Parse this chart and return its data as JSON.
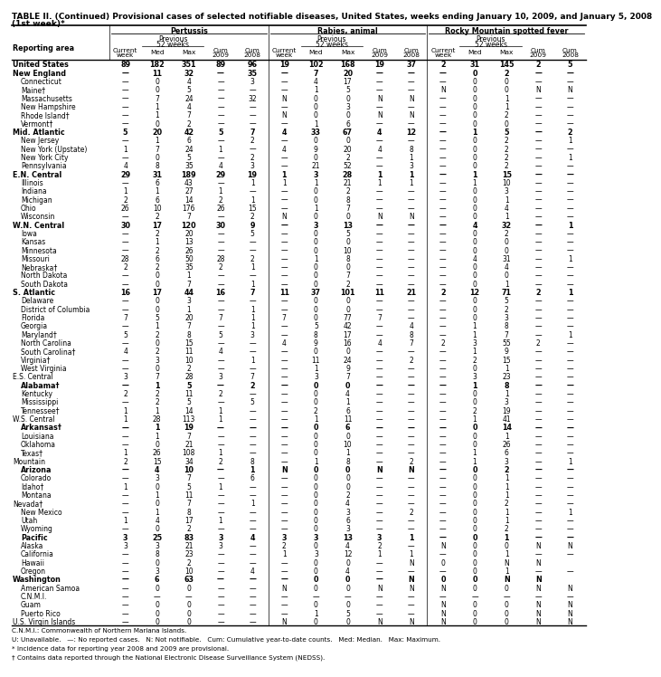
{
  "title1": "TABLE II. (Continued) Provisional cases of selected notifiable diseases, United States, weeks ending January 10, 2009, and January 5, 2008",
  "title2": "(1st week)*",
  "col_groups": [
    "Pertussis",
    "Rabies, animal",
    "Rocky Mountain spotted fever"
  ],
  "rows": [
    [
      "United States",
      "89",
      "182",
      "351",
      "89",
      "96",
      "19",
      "102",
      "168",
      "19",
      "37",
      "2",
      "31",
      "145",
      "2",
      "5"
    ],
    [
      "New England",
      "—",
      "11",
      "32",
      "—",
      "35",
      "—",
      "7",
      "20",
      "—",
      "—",
      "—",
      "0",
      "2",
      "—",
      "—"
    ],
    [
      "Connecticut",
      "—",
      "0",
      "4",
      "—",
      "3",
      "—",
      "4",
      "17",
      "—",
      "—",
      "—",
      "0",
      "0",
      "—",
      "—"
    ],
    [
      "Maine†",
      "—",
      "0",
      "5",
      "—",
      "—",
      "—",
      "1",
      "5",
      "—",
      "—",
      "N",
      "0",
      "0",
      "N",
      "N"
    ],
    [
      "Massachusetts",
      "—",
      "7",
      "24",
      "—",
      "32",
      "N",
      "0",
      "0",
      "N",
      "N",
      "—",
      "0",
      "1",
      "—",
      "—"
    ],
    [
      "New Hampshire",
      "—",
      "1",
      "4",
      "—",
      "—",
      "—",
      "0",
      "3",
      "—",
      "—",
      "—",
      "0",
      "1",
      "—",
      "—"
    ],
    [
      "Rhode Island†",
      "—",
      "1",
      "7",
      "—",
      "—",
      "N",
      "0",
      "0",
      "N",
      "N",
      "—",
      "0",
      "2",
      "—",
      "—"
    ],
    [
      "Vermont†",
      "—",
      "0",
      "2",
      "—",
      "—",
      "—",
      "1",
      "6",
      "—",
      "—",
      "—",
      "0",
      "0",
      "—",
      "—"
    ],
    [
      "Mid. Atlantic",
      "5",
      "20",
      "42",
      "5",
      "7",
      "4",
      "33",
      "67",
      "4",
      "12",
      "—",
      "1",
      "5",
      "—",
      "2"
    ],
    [
      "New Jersey",
      "—",
      "1",
      "6",
      "—",
      "2",
      "—",
      "0",
      "0",
      "—",
      "—",
      "—",
      "0",
      "2",
      "—",
      "1"
    ],
    [
      "New York (Upstate)",
      "1",
      "7",
      "24",
      "1",
      "—",
      "4",
      "9",
      "20",
      "4",
      "8",
      "—",
      "0",
      "2",
      "—",
      "—"
    ],
    [
      "New York City",
      "—",
      "0",
      "5",
      "—",
      "2",
      "—",
      "0",
      "2",
      "—",
      "1",
      "—",
      "0",
      "2",
      "—",
      "1"
    ],
    [
      "Pennsylvania",
      "4",
      "8",
      "35",
      "4",
      "3",
      "—",
      "21",
      "52",
      "—",
      "3",
      "—",
      "0",
      "2",
      "—",
      "—"
    ],
    [
      "E.N. Central",
      "29",
      "31",
      "189",
      "29",
      "19",
      "1",
      "3",
      "28",
      "1",
      "1",
      "—",
      "1",
      "15",
      "—",
      "—"
    ],
    [
      "Illinois",
      "—",
      "6",
      "43",
      "—",
      "1",
      "1",
      "1",
      "21",
      "1",
      "1",
      "—",
      "1",
      "10",
      "—",
      "—"
    ],
    [
      "Indiana",
      "1",
      "1",
      "27",
      "1",
      "—",
      "—",
      "0",
      "2",
      "—",
      "—",
      "—",
      "0",
      "3",
      "—",
      "—"
    ],
    [
      "Michigan",
      "2",
      "6",
      "14",
      "2",
      "1",
      "—",
      "0",
      "8",
      "—",
      "—",
      "—",
      "0",
      "1",
      "—",
      "—"
    ],
    [
      "Ohio",
      "26",
      "10",
      "176",
      "26",
      "15",
      "—",
      "1",
      "7",
      "—",
      "—",
      "—",
      "0",
      "4",
      "—",
      "—"
    ],
    [
      "Wisconsin",
      "—",
      "2",
      "7",
      "—",
      "2",
      "N",
      "0",
      "0",
      "N",
      "N",
      "—",
      "0",
      "1",
      "—",
      "—"
    ],
    [
      "W.N. Central",
      "30",
      "17",
      "120",
      "30",
      "9",
      "—",
      "3",
      "13",
      "—",
      "—",
      "—",
      "4",
      "32",
      "—",
      "1"
    ],
    [
      "Iowa",
      "—",
      "2",
      "20",
      "—",
      "5",
      "—",
      "0",
      "5",
      "—",
      "—",
      "—",
      "0",
      "2",
      "—",
      "—"
    ],
    [
      "Kansas",
      "—",
      "1",
      "13",
      "—",
      "—",
      "—",
      "0",
      "0",
      "—",
      "—",
      "—",
      "0",
      "0",
      "—",
      "—"
    ],
    [
      "Minnesota",
      "—",
      "2",
      "26",
      "—",
      "—",
      "—",
      "0",
      "10",
      "—",
      "—",
      "—",
      "0",
      "0",
      "—",
      "—"
    ],
    [
      "Missouri",
      "28",
      "6",
      "50",
      "28",
      "2",
      "—",
      "1",
      "8",
      "—",
      "—",
      "—",
      "4",
      "31",
      "—",
      "1"
    ],
    [
      "Nebraska†",
      "2",
      "2",
      "35",
      "2",
      "1",
      "—",
      "0",
      "0",
      "—",
      "—",
      "—",
      "0",
      "4",
      "—",
      "—"
    ],
    [
      "North Dakota",
      "—",
      "0",
      "1",
      "—",
      "—",
      "—",
      "0",
      "7",
      "—",
      "—",
      "—",
      "0",
      "0",
      "—",
      "—"
    ],
    [
      "South Dakota",
      "—",
      "0",
      "7",
      "—",
      "1",
      "—",
      "0",
      "2",
      "—",
      "—",
      "—",
      "0",
      "1",
      "—",
      "—"
    ],
    [
      "S. Atlantic",
      "16",
      "17",
      "44",
      "16",
      "7",
      "11",
      "37",
      "101",
      "11",
      "21",
      "2",
      "12",
      "71",
      "2",
      "1"
    ],
    [
      "Delaware",
      "—",
      "0",
      "3",
      "—",
      "—",
      "—",
      "0",
      "0",
      "—",
      "—",
      "—",
      "0",
      "5",
      "—",
      "—"
    ],
    [
      "District of Columbia",
      "—",
      "0",
      "1",
      "—",
      "1",
      "—",
      "0",
      "0",
      "—",
      "—",
      "—",
      "0",
      "2",
      "—",
      "—"
    ],
    [
      "Florida",
      "7",
      "5",
      "20",
      "7",
      "1",
      "7",
      "0",
      "77",
      "7",
      "—",
      "—",
      "0",
      "3",
      "—",
      "—"
    ],
    [
      "Georgia",
      "—",
      "1",
      "7",
      "—",
      "1",
      "—",
      "5",
      "42",
      "—",
      "4",
      "—",
      "1",
      "8",
      "—",
      "—"
    ],
    [
      "Maryland†",
      "5",
      "2",
      "8",
      "5",
      "3",
      "—",
      "8",
      "17",
      "—",
      "8",
      "—",
      "1",
      "7",
      "—",
      "1"
    ],
    [
      "North Carolina",
      "—",
      "0",
      "15",
      "—",
      "—",
      "4",
      "9",
      "16",
      "4",
      "7",
      "2",
      "3",
      "55",
      "2",
      "—"
    ],
    [
      "South Carolina†",
      "4",
      "2",
      "11",
      "4",
      "—",
      "—",
      "0",
      "0",
      "—",
      "—",
      "—",
      "1",
      "9",
      "—",
      "—"
    ],
    [
      "Virginia†",
      "—",
      "3",
      "10",
      "—",
      "1",
      "—",
      "11",
      "24",
      "—",
      "2",
      "—",
      "2",
      "15",
      "—",
      "—"
    ],
    [
      "West Virginia",
      "—",
      "0",
      "2",
      "—",
      "—",
      "—",
      "1",
      "9",
      "—",
      "—",
      "—",
      "0",
      "1",
      "—",
      "—"
    ],
    [
      "E.S. Central",
      "3",
      "7",
      "28",
      "3",
      "7",
      "—",
      "3",
      "7",
      "—",
      "—",
      "—",
      "3",
      "23",
      "—",
      "—"
    ],
    [
      "Alabama†",
      "—",
      "1",
      "5",
      "—",
      "2",
      "—",
      "0",
      "0",
      "—",
      "—",
      "—",
      "1",
      "8",
      "—",
      "—"
    ],
    [
      "Kentucky",
      "2",
      "2",
      "11",
      "2",
      "—",
      "—",
      "0",
      "4",
      "—",
      "—",
      "—",
      "0",
      "1",
      "—",
      "—"
    ],
    [
      "Mississippi",
      "—",
      "2",
      "5",
      "—",
      "5",
      "—",
      "0",
      "1",
      "—",
      "—",
      "—",
      "0",
      "3",
      "—",
      "—"
    ],
    [
      "Tennessee†",
      "1",
      "1",
      "14",
      "1",
      "—",
      "—",
      "2",
      "6",
      "—",
      "—",
      "—",
      "2",
      "19",
      "—",
      "—"
    ],
    [
      "W.S. Central",
      "1",
      "28",
      "113",
      "1",
      "—",
      "—",
      "1",
      "11",
      "—",
      "—",
      "—",
      "1",
      "41",
      "—",
      "—"
    ],
    [
      "Arkansas†",
      "—",
      "1",
      "19",
      "—",
      "—",
      "—",
      "0",
      "6",
      "—",
      "—",
      "—",
      "0",
      "14",
      "—",
      "—"
    ],
    [
      "Louisiana",
      "—",
      "1",
      "7",
      "—",
      "—",
      "—",
      "0",
      "0",
      "—",
      "—",
      "—",
      "0",
      "1",
      "—",
      "—"
    ],
    [
      "Oklahoma",
      "—",
      "0",
      "21",
      "—",
      "—",
      "—",
      "0",
      "10",
      "—",
      "—",
      "—",
      "0",
      "26",
      "—",
      "—"
    ],
    [
      "Texas†",
      "1",
      "26",
      "108",
      "1",
      "—",
      "—",
      "0",
      "1",
      "—",
      "—",
      "—",
      "1",
      "6",
      "—",
      "—"
    ],
    [
      "Mountain",
      "2",
      "15",
      "34",
      "2",
      "8",
      "—",
      "1",
      "8",
      "—",
      "2",
      "—",
      "1",
      "3",
      "—",
      "1"
    ],
    [
      "Arizona",
      "—",
      "4",
      "10",
      "—",
      "1",
      "N",
      "0",
      "0",
      "N",
      "N",
      "—",
      "0",
      "2",
      "—",
      "—"
    ],
    [
      "Colorado",
      "—",
      "3",
      "7",
      "—",
      "6",
      "—",
      "0",
      "0",
      "—",
      "—",
      "—",
      "0",
      "1",
      "—",
      "—"
    ],
    [
      "Idaho†",
      "1",
      "0",
      "5",
      "1",
      "—",
      "—",
      "0",
      "0",
      "—",
      "—",
      "—",
      "0",
      "1",
      "—",
      "—"
    ],
    [
      "Montana",
      "—",
      "1",
      "11",
      "—",
      "—",
      "—",
      "0",
      "2",
      "—",
      "—",
      "—",
      "0",
      "1",
      "—",
      "—"
    ],
    [
      "Nevada†",
      "—",
      "0",
      "7",
      "—",
      "1",
      "—",
      "0",
      "4",
      "—",
      "—",
      "—",
      "0",
      "2",
      "—",
      "—"
    ],
    [
      "New Mexico",
      "—",
      "1",
      "8",
      "—",
      "—",
      "—",
      "0",
      "3",
      "—",
      "2",
      "—",
      "0",
      "1",
      "—",
      "1"
    ],
    [
      "Utah",
      "1",
      "4",
      "17",
      "1",
      "—",
      "—",
      "0",
      "6",
      "—",
      "—",
      "—",
      "0",
      "1",
      "—",
      "—"
    ],
    [
      "Wyoming",
      "—",
      "0",
      "2",
      "—",
      "—",
      "—",
      "0",
      "3",
      "—",
      "—",
      "—",
      "0",
      "2",
      "—",
      "—"
    ],
    [
      "Pacific",
      "3",
      "25",
      "83",
      "3",
      "4",
      "3",
      "3",
      "13",
      "3",
      "1",
      "—",
      "0",
      "1",
      "—",
      "—"
    ],
    [
      "Alaska",
      "3",
      "3",
      "21",
      "3",
      "—",
      "2",
      "0",
      "4",
      "2",
      "—",
      "N",
      "0",
      "0",
      "N",
      "N"
    ],
    [
      "California",
      "—",
      "8",
      "23",
      "—",
      "—",
      "1",
      "3",
      "12",
      "1",
      "1",
      "—",
      "0",
      "1",
      "—",
      "—"
    ],
    [
      "Hawaii",
      "—",
      "0",
      "2",
      "—",
      "—",
      "—",
      "0",
      "0",
      "—",
      "N",
      "0",
      "0",
      "N",
      "N",
      ""
    ],
    [
      "Oregon",
      "—",
      "3",
      "10",
      "—",
      "4",
      "—",
      "0",
      "4",
      "—",
      "—",
      "—",
      "0",
      "1",
      "—",
      "—"
    ],
    [
      "Washington",
      "—",
      "6",
      "63",
      "—",
      "—",
      "—",
      "0",
      "0",
      "—",
      "N",
      "0",
      "0",
      "N",
      "N",
      ""
    ],
    [
      "American Samoa",
      "—",
      "0",
      "0",
      "—",
      "—",
      "N",
      "0",
      "0",
      "N",
      "N",
      "N",
      "0",
      "0",
      "N",
      "N"
    ],
    [
      "C.N.M.I.",
      "—",
      "—",
      "—",
      "—",
      "—",
      "—",
      "—",
      "—",
      "—",
      "—",
      "—",
      "—",
      "—",
      "—",
      "—"
    ],
    [
      "Guam",
      "—",
      "0",
      "0",
      "—",
      "—",
      "—",
      "0",
      "0",
      "—",
      "—",
      "N",
      "0",
      "0",
      "N",
      "N"
    ],
    [
      "Puerto Rico",
      "—",
      "0",
      "0",
      "—",
      "—",
      "—",
      "1",
      "5",
      "—",
      "—",
      "N",
      "0",
      "0",
      "N",
      "N"
    ],
    [
      "U.S. Virgin Islands",
      "—",
      "0",
      "0",
      "—",
      "—",
      "N",
      "0",
      "0",
      "N",
      "N",
      "N",
      "0",
      "0",
      "N",
      "N"
    ]
  ],
  "section_rows": [
    0,
    1,
    8,
    13,
    19,
    27,
    38,
    43,
    48,
    56,
    61
  ],
  "indent_rows": [
    2,
    3,
    4,
    5,
    6,
    7,
    9,
    10,
    11,
    12,
    14,
    15,
    16,
    17,
    18,
    20,
    21,
    22,
    23,
    24,
    25,
    26,
    28,
    29,
    30,
    31,
    32,
    33,
    34,
    35,
    36,
    38,
    39,
    40,
    41,
    43,
    44,
    45,
    46,
    48,
    49,
    50,
    51,
    53,
    54,
    55,
    56,
    57,
    58,
    59,
    60,
    62,
    63,
    64,
    65
  ],
  "footnotes": [
    "C.N.M.I.: Commonwealth of Northern Mariana Islands.",
    "U: Unavailable.   —: No reported cases.   N: Not notifiable.   Cum: Cumulative year-to-date counts.   Med: Median.   Max: Maximum.",
    "* Incidence data for reporting year 2008 and 2009 are provisional.",
    "† Contains data reported through the National Electronic Disease Surveillance System (NEDSS)."
  ]
}
